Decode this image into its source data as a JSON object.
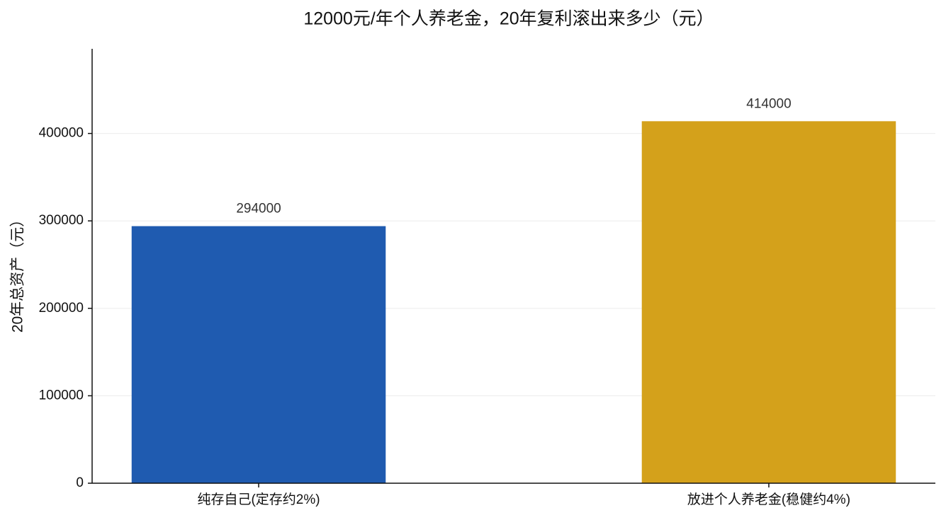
{
  "chart_data": {
    "type": "bar",
    "title": "12000元/年个人养老金，20年复利滚出来多少（元）",
    "y_label": "20年总资产（元）",
    "categories": [
      "纯存自己(定存约2%)",
      "放进个人养老金(稳健约4%)"
    ],
    "values": [
      294000,
      414000
    ],
    "colors": [
      "#1f5bb0",
      "#d4a11b"
    ],
    "ylim": [
      0,
      496800
    ],
    "yticks": [
      0,
      100000,
      200000,
      300000,
      400000
    ],
    "grid": true
  }
}
